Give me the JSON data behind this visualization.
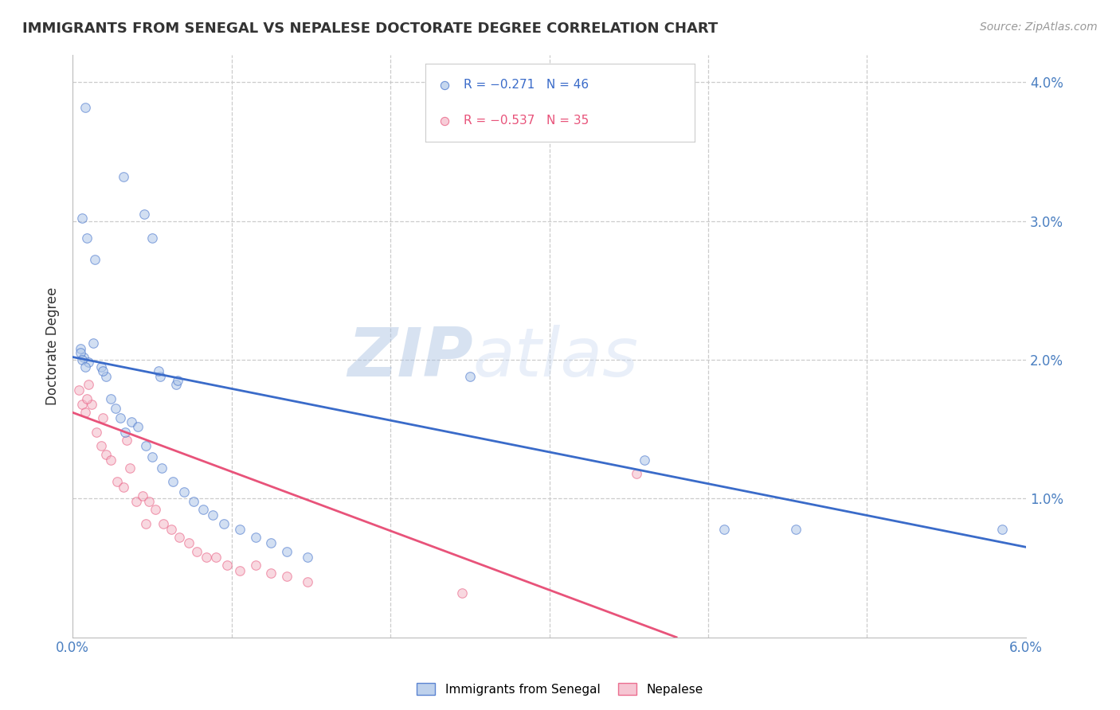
{
  "title": "IMMIGRANTS FROM SENEGAL VS NEPALESE DOCTORATE DEGREE CORRELATION CHART",
  "source": "Source: ZipAtlas.com",
  "ylabel": "Doctorate Degree",
  "right_ytick_vals": [
    0.0,
    1.0,
    2.0,
    3.0,
    4.0
  ],
  "xmin": 0.0,
  "xmax": 6.0,
  "ymin": 0.0,
  "ymax": 4.2,
  "legend_blue_label": "Immigrants from Senegal",
  "legend_pink_label": "Nepalese",
  "legend_blue_r": "R = −0.271",
  "legend_blue_n": "N = 46",
  "legend_pink_r": "R = −0.537",
  "legend_pink_n": "N = 35",
  "blue_color": "#AEC6E8",
  "pink_color": "#F4B8C8",
  "line_blue_color": "#3A6BC9",
  "line_pink_color": "#E8537A",
  "watermark_zip": "ZIP",
  "watermark_atlas": "atlas",
  "blue_scatter_x": [
    0.08,
    0.32,
    0.45,
    0.5,
    0.05,
    0.07,
    0.1,
    0.13,
    0.18,
    0.21,
    0.24,
    0.27,
    0.3,
    0.33,
    0.37,
    0.41,
    0.46,
    0.5,
    0.56,
    0.63,
    0.7,
    0.76,
    0.82,
    0.88,
    0.95,
    1.05,
    1.15,
    1.25,
    1.35,
    1.48,
    0.06,
    0.09,
    0.14,
    0.19,
    0.55,
    0.65,
    2.5,
    3.6,
    4.1,
    5.85,
    0.05,
    0.06,
    0.08,
    0.54,
    0.66,
    4.55
  ],
  "blue_scatter_y": [
    3.82,
    3.32,
    3.05,
    2.88,
    2.08,
    2.02,
    1.98,
    2.12,
    1.95,
    1.88,
    1.72,
    1.65,
    1.58,
    1.48,
    1.55,
    1.52,
    1.38,
    1.3,
    1.22,
    1.12,
    1.05,
    0.98,
    0.92,
    0.88,
    0.82,
    0.78,
    0.72,
    0.68,
    0.62,
    0.58,
    3.02,
    2.88,
    2.72,
    1.92,
    1.88,
    1.82,
    1.88,
    1.28,
    0.78,
    0.78,
    2.05,
    2.0,
    1.95,
    1.92,
    1.85,
    0.78
  ],
  "pink_scatter_x": [
    0.04,
    0.06,
    0.08,
    0.1,
    0.12,
    0.15,
    0.18,
    0.21,
    0.24,
    0.28,
    0.32,
    0.36,
    0.4,
    0.44,
    0.48,
    0.52,
    0.57,
    0.62,
    0.67,
    0.73,
    0.78,
    0.84,
    0.9,
    0.97,
    1.05,
    1.15,
    1.25,
    1.35,
    1.48,
    2.45,
    0.09,
    0.19,
    0.34,
    0.46,
    3.55
  ],
  "pink_scatter_y": [
    1.78,
    1.68,
    1.62,
    1.82,
    1.68,
    1.48,
    1.38,
    1.32,
    1.28,
    1.12,
    1.08,
    1.22,
    0.98,
    1.02,
    0.98,
    0.92,
    0.82,
    0.78,
    0.72,
    0.68,
    0.62,
    0.58,
    0.58,
    0.52,
    0.48,
    0.52,
    0.46,
    0.44,
    0.4,
    0.32,
    1.72,
    1.58,
    1.42,
    0.82,
    1.18
  ],
  "blue_line_x": [
    0.0,
    6.0
  ],
  "blue_line_y": [
    2.02,
    0.65
  ],
  "pink_line_x": [
    0.0,
    3.8
  ],
  "pink_line_y": [
    1.62,
    0.0
  ],
  "xtick_positions": [
    0.0,
    1.0,
    2.0,
    3.0,
    4.0,
    5.0,
    6.0
  ],
  "xtick_labels_show": [
    "0.0%",
    "",
    "",
    "",
    "",
    "",
    "6.0%"
  ],
  "grid_color": "#CCCCCC",
  "bg_color": "#FFFFFF",
  "title_color": "#333333",
  "axis_label_color": "#4A7FC1",
  "scatter_size": 70,
  "scatter_alpha": 0.55,
  "scatter_linewidth": 0.8
}
